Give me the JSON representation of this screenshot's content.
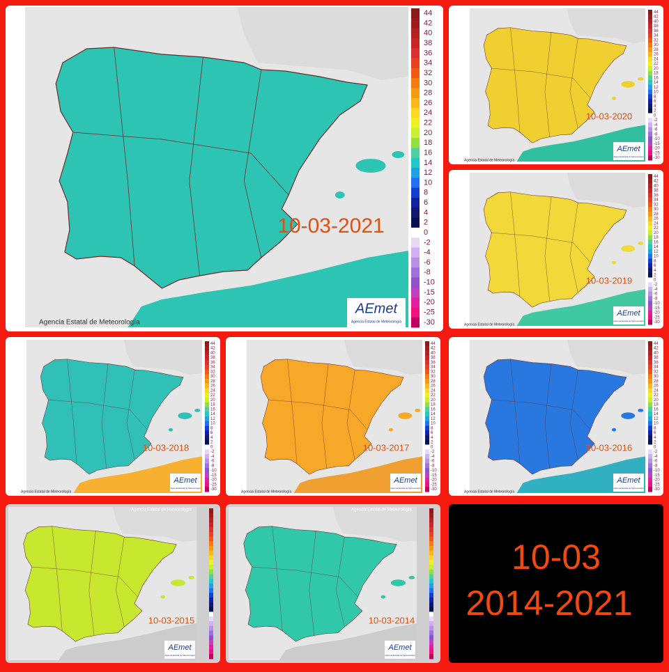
{
  "main": {
    "date": "10-03-2021"
  },
  "credits": {
    "copyright": "Agencia Estatal de Meteorología",
    "logo": "AEmet",
    "logo_sub": "Agencia Estatal de Meteorología"
  },
  "legend_ticks": [
    44,
    42,
    40,
    38,
    36,
    34,
    32,
    30,
    28,
    26,
    24,
    22,
    20,
    18,
    16,
    14,
    12,
    10,
    8,
    6,
    4,
    2,
    0,
    -2,
    -4,
    -6,
    -8,
    -10,
    -15,
    -20,
    -25,
    -30
  ],
  "panels": [
    {
      "date": "10-03-2020"
    },
    {
      "date": "10-03-2019"
    },
    {
      "date": "10-03-2018"
    },
    {
      "date": "10-03-2017"
    },
    {
      "date": "10-03-2016"
    },
    {
      "date": "10-03-2015"
    },
    {
      "date": "10-03-2014"
    }
  ],
  "summary": {
    "line1": "10-03",
    "line2": "2014-2021"
  }
}
